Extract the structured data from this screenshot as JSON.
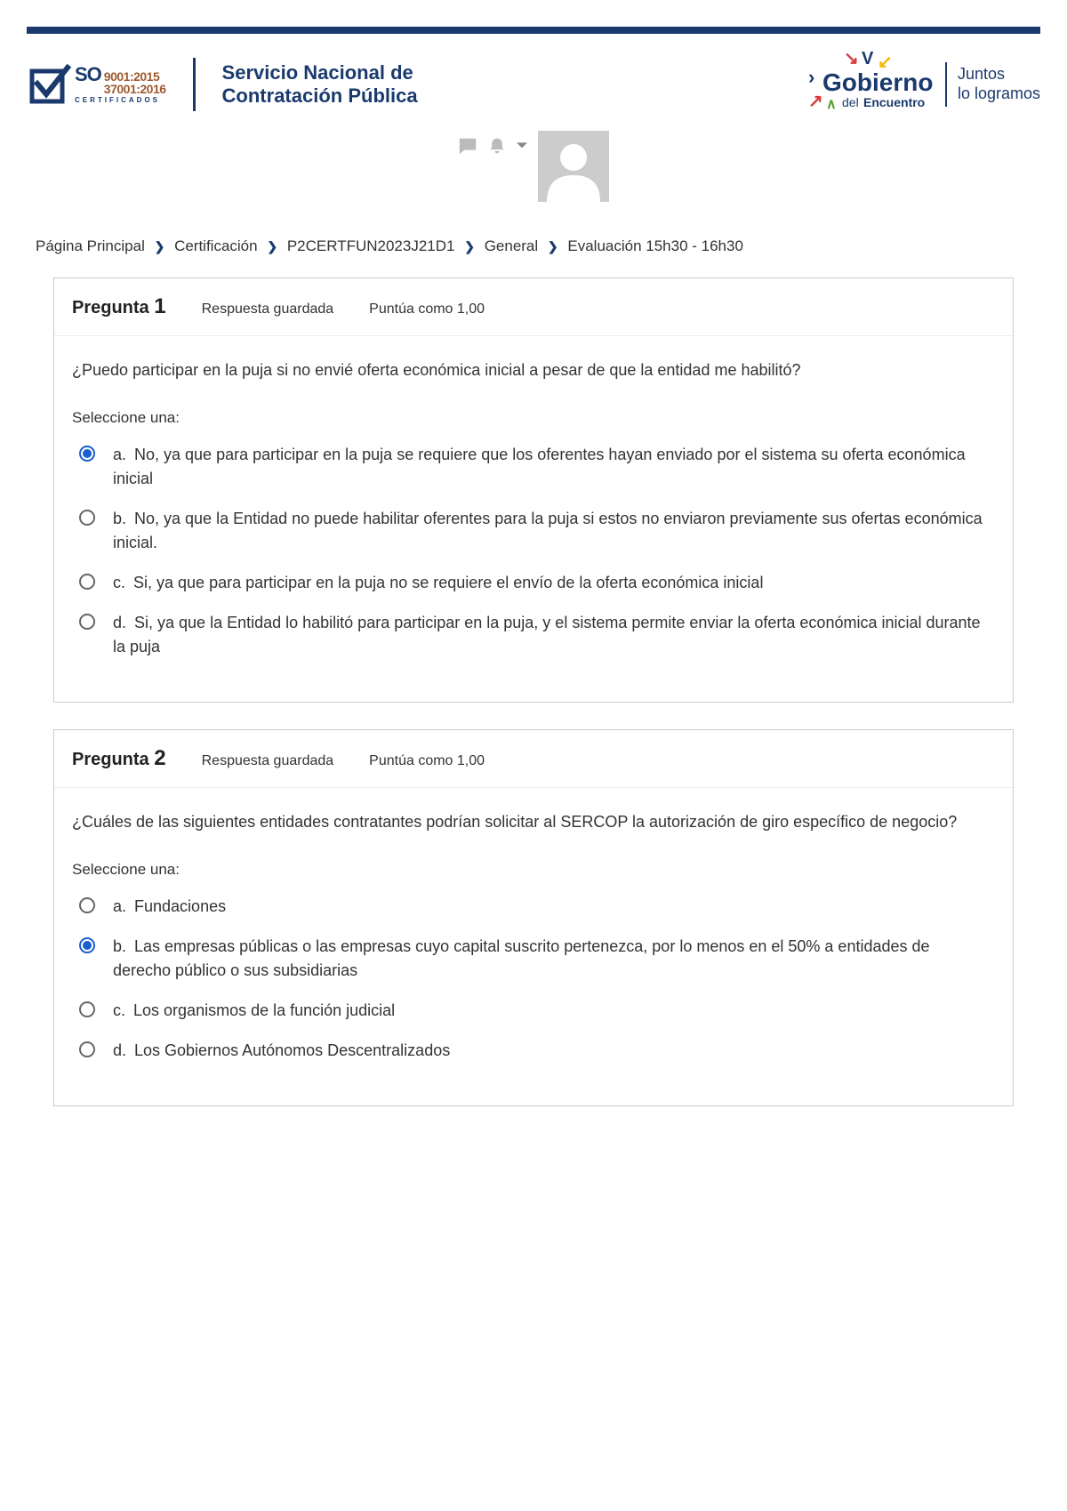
{
  "colors": {
    "navy": "#1a3a6e",
    "brown": "#9e5a2e",
    "blue_radio": "#1a5fd0",
    "gray_border": "#cccccc",
    "gray_icon": "#bbbbbb",
    "red_arrow": "#d93a3a",
    "yellow_arrow": "#f5b800",
    "green_arrow": "#5aa02c"
  },
  "header": {
    "iso": {
      "line1": "9001:2015",
      "line2": "37001:2016",
      "cert": "CERTIFICADOS"
    },
    "service_title_line1": "Servicio Nacional de",
    "service_title_line2": "Contratación Pública",
    "gov": {
      "main": "Gobierno",
      "sub_prefix": "del ",
      "sub_bold": "Encuentro",
      "slogan_line1": "Juntos",
      "slogan_line2": "lo logramos"
    }
  },
  "breadcrumb": [
    "Página Principal",
    "Certificación",
    "P2CERTFUN2023J21D1",
    "General",
    "Evaluación 15h30 - 16h30"
  ],
  "questions": [
    {
      "number": "1",
      "title_prefix": "Pregunta ",
      "status": "Respuesta guardada",
      "points": "Puntúa como 1,00",
      "text": "¿Puedo participar en la puja si no envié oferta económica inicial a pesar de que la entidad me habilitó?",
      "prompt": "Seleccione una:",
      "selected_index": 0,
      "options": [
        {
          "letter": "a.",
          "text": "No, ya que para participar en la puja se requiere que los oferentes hayan enviado por el sistema su oferta económica inicial"
        },
        {
          "letter": "b.",
          "text": "No, ya que la Entidad no puede habilitar oferentes para la puja si estos no enviaron previamente sus ofertas económica inicial."
        },
        {
          "letter": "c.",
          "text": "Si, ya que para participar en la puja no se requiere el envío de la oferta económica inicial"
        },
        {
          "letter": "d.",
          "text": "Si, ya que la Entidad lo habilitó para participar en la puja, y el sistema permite enviar la oferta económica inicial durante la puja"
        }
      ]
    },
    {
      "number": "2",
      "title_prefix": "Pregunta ",
      "status": "Respuesta guardada",
      "points": "Puntúa como 1,00",
      "text": "¿Cuáles de las siguientes entidades contratantes podrían solicitar al SERCOP la autorización de giro específico de negocio?",
      "prompt": "Seleccione una:",
      "selected_index": 1,
      "options": [
        {
          "letter": "a.",
          "text": "Fundaciones"
        },
        {
          "letter": "b.",
          "text": "Las empresas públicas o las empresas cuyo capital suscrito pertenezca, por lo menos en el 50% a entidades de derecho público o sus subsidiarias"
        },
        {
          "letter": "c.",
          "text": "Los organismos de la función judicial"
        },
        {
          "letter": "d.",
          "text": "Los Gobiernos Autónomos Descentralizados"
        }
      ]
    }
  ]
}
